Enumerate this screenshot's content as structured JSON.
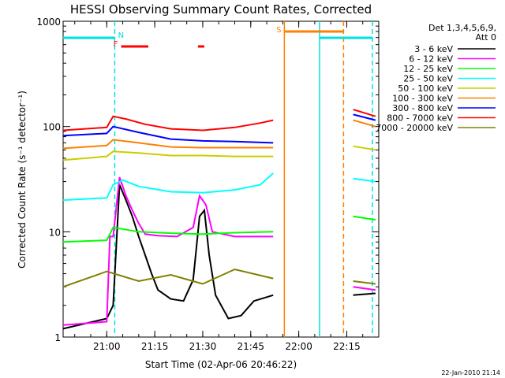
{
  "chart_data": {
    "type": "line",
    "title": "HESSI Observing Summary Count Rates, Corrected",
    "ylabel": "Corrected Count Rate (s⁻¹ detector⁻¹)",
    "xlabel": "Start Time (02-Apr-06 20:46:22)",
    "yscale": "log",
    "ylim": [
      1,
      1000
    ],
    "xlim": [
      "20:46:22",
      "22:25:00"
    ],
    "x_ticks": [
      "21:00",
      "21:15",
      "21:30",
      "21:45",
      "22:00",
      "22:15"
    ],
    "y_ticks": [
      "1",
      "10",
      "100",
      "1000"
    ],
    "grid": false,
    "legend": {
      "placement": "right",
      "title": "Det 1,3,4,5,6,9,",
      "subtitle": "Att 0"
    },
    "flags": [
      {
        "label": "F",
        "color": "#ff0000"
      },
      {
        "label": "N",
        "color": "#00e0e0"
      },
      {
        "label": "S",
        "color": "#ff7f00"
      }
    ],
    "flag_bars": [
      {
        "flag": "N",
        "start": "20:46:22",
        "end": "21:02:30",
        "color": "#00e0e0"
      },
      {
        "flag": "F",
        "start": "21:04:30",
        "end": "21:13:00",
        "color": "#ff0000"
      },
      {
        "flag": "F",
        "start": "21:28:30",
        "end": "21:30:30",
        "color": "#ff0000"
      },
      {
        "flag": "S",
        "start": "21:55:30",
        "end": "22:14:00",
        "color": "#ff7f00"
      },
      {
        "flag": "N",
        "start": "22:06:30",
        "end": "22:23:00",
        "color": "#00e0e0"
      }
    ],
    "night_boundaries": [
      {
        "time": "21:02:30",
        "style": "dashed",
        "color": "#00e0e0"
      },
      {
        "time": "22:06:30",
        "style": "solid",
        "color": "#00e0e0"
      },
      {
        "time": "22:23:00",
        "style": "dashed",
        "color": "#00e0e0"
      },
      {
        "time": "21:55:30",
        "style": "solid",
        "color": "#ff7f00"
      },
      {
        "time": "22:14:00",
        "style": "dashed",
        "color": "#ff7f00"
      }
    ],
    "series": [
      {
        "name": "3 - 6 keV",
        "color": "#000000",
        "points": [
          [
            "20:46:22",
            1.2
          ],
          [
            "21:00:00",
            1.5
          ],
          [
            "21:02:00",
            2
          ],
          [
            "21:04:00",
            28
          ],
          [
            "21:06:00",
            20
          ],
          [
            "21:08:00",
            14
          ],
          [
            "21:10:00",
            9
          ],
          [
            "21:12:00",
            6
          ],
          [
            "21:14:00",
            4
          ],
          [
            "21:16:00",
            2.8
          ],
          [
            "21:20:00",
            2.3
          ],
          [
            "21:24:00",
            2.2
          ],
          [
            "21:27:00",
            3.5
          ],
          [
            "21:29:00",
            14
          ],
          [
            "21:30:30",
            16
          ],
          [
            "21:32:00",
            6
          ],
          [
            "21:34:00",
            2.5
          ],
          [
            "21:38:00",
            1.5
          ],
          [
            "21:42:00",
            1.6
          ],
          [
            "21:46:00",
            2.2
          ],
          [
            "21:52:00",
            2.5
          ]
        ],
        "points2": [
          [
            "22:17:00",
            2.5
          ],
          [
            "22:24:00",
            2.6
          ]
        ]
      },
      {
        "name": "6 - 12 keV",
        "color": "#ff00ff",
        "points": [
          [
            "20:46:22",
            1.3
          ],
          [
            "21:00:00",
            1.4
          ],
          [
            "21:01:00",
            9
          ],
          [
            "21:02:00",
            9
          ],
          [
            "21:04:00",
            33
          ],
          [
            "21:06:00",
            22
          ],
          [
            "21:08:00",
            16
          ],
          [
            "21:10:00",
            12
          ],
          [
            "21:12:00",
            9.5
          ],
          [
            "21:16:00",
            9.2
          ],
          [
            "21:22:00",
            9
          ],
          [
            "21:27:00",
            11
          ],
          [
            "21:29:00",
            22
          ],
          [
            "21:31:00",
            18
          ],
          [
            "21:33:00",
            10
          ],
          [
            "21:40:00",
            9
          ],
          [
            "21:52:00",
            9
          ]
        ],
        "points2": [
          [
            "22:17:00",
            3
          ],
          [
            "22:24:00",
            2.8
          ]
        ]
      },
      {
        "name": "12 - 25 keV",
        "color": "#00ff00",
        "points": [
          [
            "20:46:22",
            8
          ],
          [
            "21:00:00",
            8.3
          ],
          [
            "21:02:00",
            11
          ],
          [
            "21:10:00",
            10
          ],
          [
            "21:20:00",
            9.7
          ],
          [
            "21:30:00",
            9.5
          ],
          [
            "21:40:00",
            9.8
          ],
          [
            "21:52:00",
            10
          ]
        ],
        "points2": [
          [
            "22:17:00",
            14
          ],
          [
            "22:24:00",
            13
          ]
        ]
      },
      {
        "name": "25 - 50 keV",
        "color": "#00ffff",
        "points": [
          [
            "20:46:22",
            20
          ],
          [
            "21:00:00",
            21
          ],
          [
            "21:02:00",
            28
          ],
          [
            "21:05:00",
            31
          ],
          [
            "21:10:00",
            27
          ],
          [
            "21:20:00",
            24
          ],
          [
            "21:30:00",
            23.5
          ],
          [
            "21:40:00",
            25
          ],
          [
            "21:48:00",
            28
          ],
          [
            "21:52:00",
            36
          ]
        ],
        "points2": [
          [
            "22:17:00",
            32
          ],
          [
            "22:24:00",
            30
          ]
        ]
      },
      {
        "name": "50 - 100 keV",
        "color": "#cccc00",
        "points": [
          [
            "20:46:22",
            48
          ],
          [
            "21:00:00",
            52
          ],
          [
            "21:02:00",
            58
          ],
          [
            "21:10:00",
            56
          ],
          [
            "21:20:00",
            53
          ],
          [
            "21:30:00",
            53
          ],
          [
            "21:40:00",
            52
          ],
          [
            "21:52:00",
            52
          ]
        ],
        "points2": [
          [
            "22:17:00",
            65
          ],
          [
            "22:24:00",
            60
          ]
        ]
      },
      {
        "name": "100 - 300 keV",
        "color": "#ff7f00",
        "points": [
          [
            "20:46:22",
            62
          ],
          [
            "21:00:00",
            66
          ],
          [
            "21:02:00",
            75
          ],
          [
            "21:10:00",
            70
          ],
          [
            "21:20:00",
            64
          ],
          [
            "21:30:00",
            63
          ],
          [
            "21:40:00",
            63
          ],
          [
            "21:52:00",
            63
          ]
        ],
        "points2": [
          [
            "22:17:00",
            115
          ],
          [
            "22:24:00",
            100
          ]
        ]
      },
      {
        "name": "300 - 800 keV",
        "color": "#0000ff",
        "points": [
          [
            "20:46:22",
            82
          ],
          [
            "21:00:00",
            86
          ],
          [
            "21:02:00",
            100
          ],
          [
            "21:10:00",
            88
          ],
          [
            "21:20:00",
            76
          ],
          [
            "21:30:00",
            73
          ],
          [
            "21:40:00",
            72
          ],
          [
            "21:52:00",
            70
          ]
        ],
        "points2": [
          [
            "22:17:00",
            130
          ],
          [
            "22:24:00",
            115
          ]
        ]
      },
      {
        "name": "800 - 7000 keV",
        "color": "#ff0000",
        "points": [
          [
            "20:46:22",
            92
          ],
          [
            "21:00:00",
            98
          ],
          [
            "21:02:00",
            125
          ],
          [
            "21:06:00",
            118
          ],
          [
            "21:12:00",
            105
          ],
          [
            "21:20:00",
            95
          ],
          [
            "21:30:00",
            92
          ],
          [
            "21:40:00",
            98
          ],
          [
            "21:48:00",
            108
          ],
          [
            "21:52:00",
            115
          ]
        ],
        "points2": [
          [
            "22:17:00",
            145
          ],
          [
            "22:24:00",
            125
          ]
        ]
      },
      {
        "name": "7000 - 20000 keV",
        "color": "#808000",
        "points": [
          [
            "20:46:22",
            3
          ],
          [
            "21:00:00",
            4.2
          ],
          [
            "21:10:00",
            3.4
          ],
          [
            "21:20:00",
            3.9
          ],
          [
            "21:30:00",
            3.2
          ],
          [
            "21:40:00",
            4.4
          ],
          [
            "21:52:00",
            3.6
          ]
        ],
        "points2": [
          [
            "22:17:00",
            3.4
          ],
          [
            "22:24:00",
            3.2
          ]
        ]
      }
    ]
  },
  "footer": {
    "timestamp": "22-Jan-2010 21:14"
  }
}
